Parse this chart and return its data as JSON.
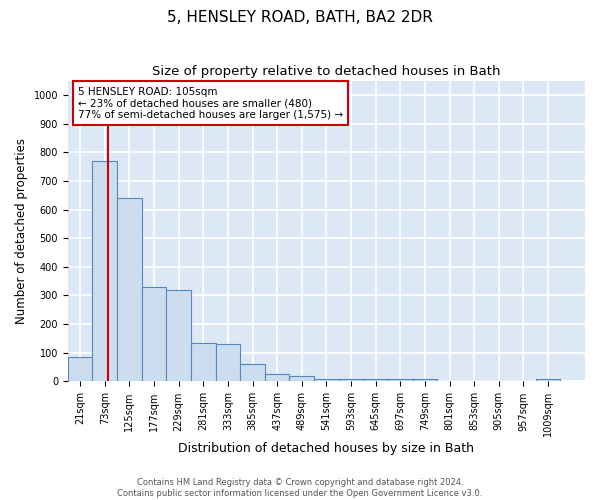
{
  "title": "5, HENSLEY ROAD, BATH, BA2 2DR",
  "subtitle": "Size of property relative to detached houses in Bath",
  "xlabel": "Distribution of detached houses by size in Bath",
  "ylabel": "Number of detached properties",
  "bar_edges": [
    21,
    73,
    125,
    177,
    229,
    281,
    333,
    385,
    437,
    489,
    541,
    593,
    645,
    697,
    749,
    801,
    853,
    905,
    957,
    1009,
    1061
  ],
  "bar_heights": [
    85,
    770,
    640,
    330,
    320,
    135,
    130,
    60,
    25,
    20,
    10,
    10,
    10,
    10,
    10,
    0,
    0,
    0,
    0,
    10
  ],
  "bar_color": "#ccddf0",
  "bar_edge_color": "#5588bb",
  "red_line_x": 105,
  "red_line_color": "#cc0000",
  "annotation_text": "5 HENSLEY ROAD: 105sqm\n← 23% of detached houses are smaller (480)\n77% of semi-detached houses are larger (1,575) →",
  "annotation_box_color": "white",
  "annotation_box_edge_color": "#cc0000",
  "ylim": [
    0,
    1050
  ],
  "yticks": [
    0,
    100,
    200,
    300,
    400,
    500,
    600,
    700,
    800,
    900,
    1000
  ],
  "background_color": "#dce8f5",
  "grid_color": "white",
  "footer_line1": "Contains HM Land Registry data © Crown copyright and database right 2024.",
  "footer_line2": "Contains public sector information licensed under the Open Government Licence v3.0.",
  "title_fontsize": 11,
  "subtitle_fontsize": 9.5,
  "tick_fontsize": 7,
  "ylabel_fontsize": 8.5,
  "xlabel_fontsize": 9,
  "footer_fontsize": 6
}
